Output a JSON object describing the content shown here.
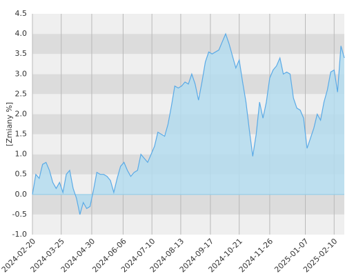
{
  "chart_data": {
    "type": "area",
    "y_label": "[Zmiany %]",
    "x": [
      "2024-02-20",
      "2024-02-24",
      "2024-02-28",
      "2024-03-03",
      "2024-03-07",
      "2024-03-11",
      "2024-03-15",
      "2024-03-19",
      "2024-03-23",
      "2024-03-27",
      "2024-03-31",
      "2024-04-04",
      "2024-04-08",
      "2024-04-12",
      "2024-04-16",
      "2024-04-20",
      "2024-04-24",
      "2024-04-28",
      "2024-05-02",
      "2024-05-06",
      "2024-05-10",
      "2024-05-14",
      "2024-05-18",
      "2024-05-22",
      "2024-05-26",
      "2024-05-30",
      "2024-06-03",
      "2024-06-07",
      "2024-06-11",
      "2024-06-15",
      "2024-06-19",
      "2024-06-23",
      "2024-06-27",
      "2024-07-01",
      "2024-07-05",
      "2024-07-09",
      "2024-07-13",
      "2024-07-17",
      "2024-07-21",
      "2024-07-25",
      "2024-07-29",
      "2024-08-02",
      "2024-08-06",
      "2024-08-10",
      "2024-08-14",
      "2024-08-18",
      "2024-08-22",
      "2024-08-26",
      "2024-08-30",
      "2024-09-03",
      "2024-09-07",
      "2024-09-11",
      "2024-09-15",
      "2024-09-19",
      "2024-09-23",
      "2024-09-27",
      "2024-10-01",
      "2024-10-05",
      "2024-10-09",
      "2024-10-13",
      "2024-10-17",
      "2024-10-21",
      "2024-10-25",
      "2024-10-29",
      "2024-11-02",
      "2024-11-06",
      "2024-11-10",
      "2024-11-14",
      "2024-11-18",
      "2024-11-22",
      "2024-11-26",
      "2024-11-30",
      "2024-12-04",
      "2024-12-08",
      "2024-12-12",
      "2024-12-16",
      "2024-12-20",
      "2024-12-24",
      "2024-12-28",
      "2025-01-01",
      "2025-01-05",
      "2025-01-09",
      "2025-01-13",
      "2025-01-17",
      "2025-01-21",
      "2025-01-25",
      "2025-01-29",
      "2025-02-02",
      "2025-02-06",
      "2025-02-10",
      "2025-02-14",
      "2025-02-18",
      "2025-02-22"
    ],
    "values": [
      0.0,
      0.5,
      0.4,
      0.75,
      0.8,
      0.6,
      0.3,
      0.15,
      0.3,
      0.05,
      0.5,
      0.6,
      0.15,
      -0.1,
      -0.5,
      -0.2,
      -0.35,
      -0.3,
      0.1,
      0.55,
      0.5,
      0.5,
      0.45,
      0.35,
      0.05,
      0.4,
      0.7,
      0.8,
      0.6,
      0.45,
      0.55,
      0.6,
      1.0,
      0.9,
      0.8,
      1.0,
      1.2,
      1.55,
      1.5,
      1.45,
      1.75,
      2.2,
      2.7,
      2.65,
      2.7,
      2.8,
      2.75,
      3.0,
      2.75,
      2.35,
      2.8,
      3.3,
      3.55,
      3.5,
      3.55,
      3.6,
      3.8,
      4.0,
      3.75,
      3.45,
      3.15,
      3.35,
      2.8,
      2.3,
      1.6,
      0.95,
      1.5,
      2.3,
      1.9,
      2.3,
      2.9,
      3.1,
      3.2,
      3.4,
      3.0,
      3.05,
      3.0,
      2.4,
      2.15,
      2.1,
      1.9,
      1.15,
      1.4,
      1.65,
      2.0,
      1.85,
      2.3,
      2.6,
      3.05,
      3.1,
      2.55,
      3.7,
      3.4
    ],
    "line_color": "#5aaae6",
    "fill_color": "#b4dcee",
    "xlim": [
      "2024-02-20",
      "2025-02-22"
    ],
    "xticks": [
      "2024-02-20",
      "2024-03-25",
      "2024-04-30",
      "2024-06-06",
      "2024-07-10",
      "2024-08-13",
      "2024-09-17",
      "2024-10-21",
      "2024-11-26",
      "2025-01-07",
      "2025-02-10"
    ],
    "ylim": [
      -1.0,
      4.5
    ],
    "yticks": [
      {
        "value": -1,
        "label": "-1.0"
      },
      -0.5,
      {
        "value": 0,
        "label": "0.0"
      },
      0.5,
      {
        "value": 1,
        "label": "1.0"
      },
      1.5,
      {
        "value": 2,
        "label": "2.0"
      },
      2.5,
      {
        "value": 3,
        "label": "3.0"
      },
      3.5,
      {
        "value": 4,
        "label": "4.0"
      },
      4.5
    ],
    "grid": true
  }
}
